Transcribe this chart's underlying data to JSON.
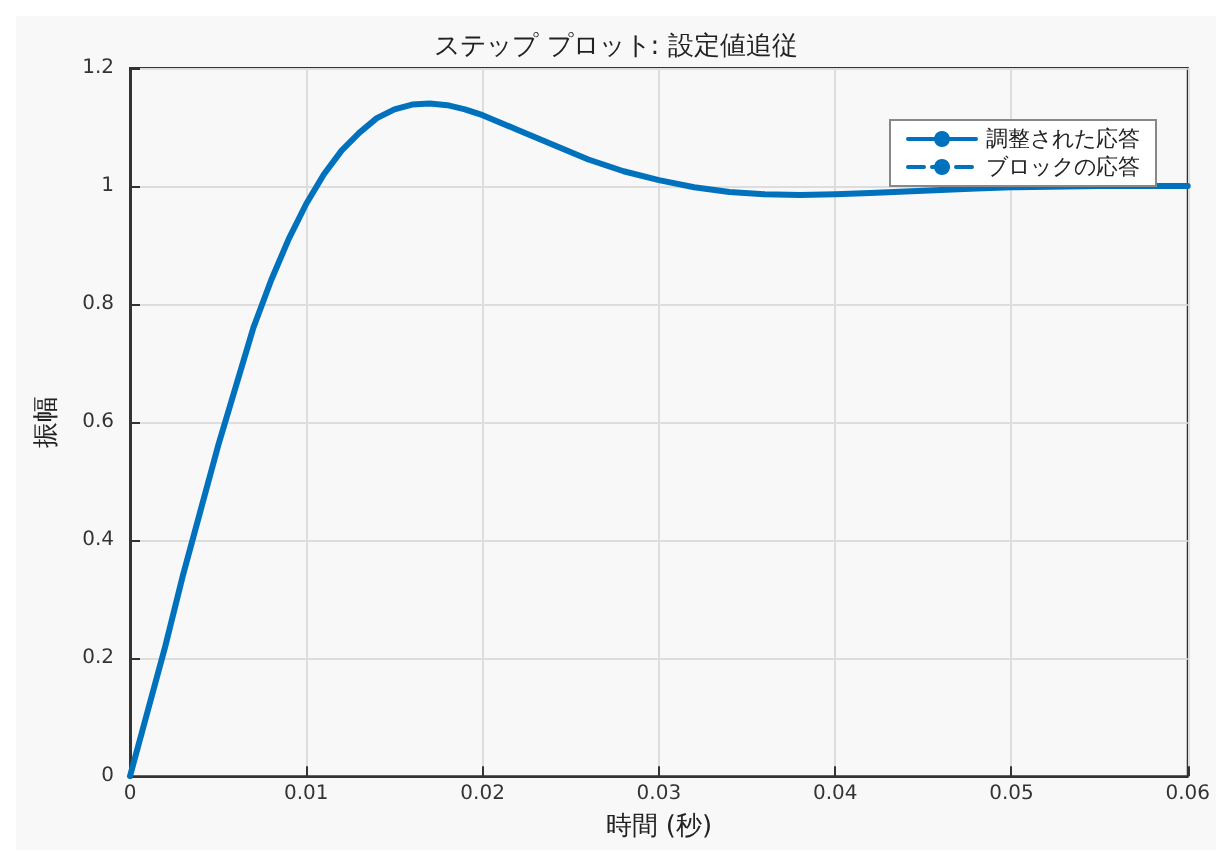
{
  "chart_data": {
    "type": "line",
    "title": "ステップ プロット: 設定値追従",
    "xlabel": "時間 (秒)",
    "ylabel": "振幅",
    "x": [
      0,
      0.001,
      0.002,
      0.003,
      0.004,
      0.005,
      0.006,
      0.007,
      0.008,
      0.009,
      0.01,
      0.011,
      0.012,
      0.013,
      0.014,
      0.015,
      0.016,
      0.017,
      0.018,
      0.019,
      0.02,
      0.022,
      0.024,
      0.026,
      0.028,
      0.03,
      0.032,
      0.034,
      0.036,
      0.038,
      0.04,
      0.042,
      0.045,
      0.048,
      0.05,
      0.055,
      0.06
    ],
    "series": [
      {
        "name": "調整された応答",
        "color": "#0072bd",
        "line_style": "solid",
        "values": [
          0,
          0.11,
          0.22,
          0.34,
          0.45,
          0.56,
          0.66,
          0.76,
          0.84,
          0.91,
          0.97,
          1.02,
          1.06,
          1.09,
          1.115,
          1.13,
          1.138,
          1.14,
          1.137,
          1.13,
          1.12,
          1.095,
          1.07,
          1.045,
          1.025,
          1.01,
          0.998,
          0.99,
          0.986,
          0.985,
          0.986,
          0.988,
          0.992,
          0.996,
          0.998,
          1.0,
          1.0
        ]
      },
      {
        "name": "ブロックの応答",
        "color": "#0072bd",
        "line_style": "dashed",
        "values": [
          null,
          null,
          null,
          null,
          null,
          null,
          null,
          null,
          null,
          null,
          null,
          null,
          null,
          null,
          null,
          null,
          null,
          null,
          null,
          null,
          null,
          null,
          null,
          null,
          null,
          null,
          null,
          null,
          null,
          null,
          null,
          null,
          null,
          null,
          null,
          null,
          null
        ]
      }
    ],
    "xlim": [
      0,
      0.06
    ],
    "xticks": [
      0,
      0.01,
      0.02,
      0.03,
      0.04,
      0.05,
      0.06
    ],
    "ylim": [
      0,
      1.2
    ],
    "yticks": [
      0,
      0.2,
      0.4,
      0.6,
      0.8,
      1,
      1.2
    ],
    "grid": true,
    "legend": "top right",
    "marker": "none"
  }
}
